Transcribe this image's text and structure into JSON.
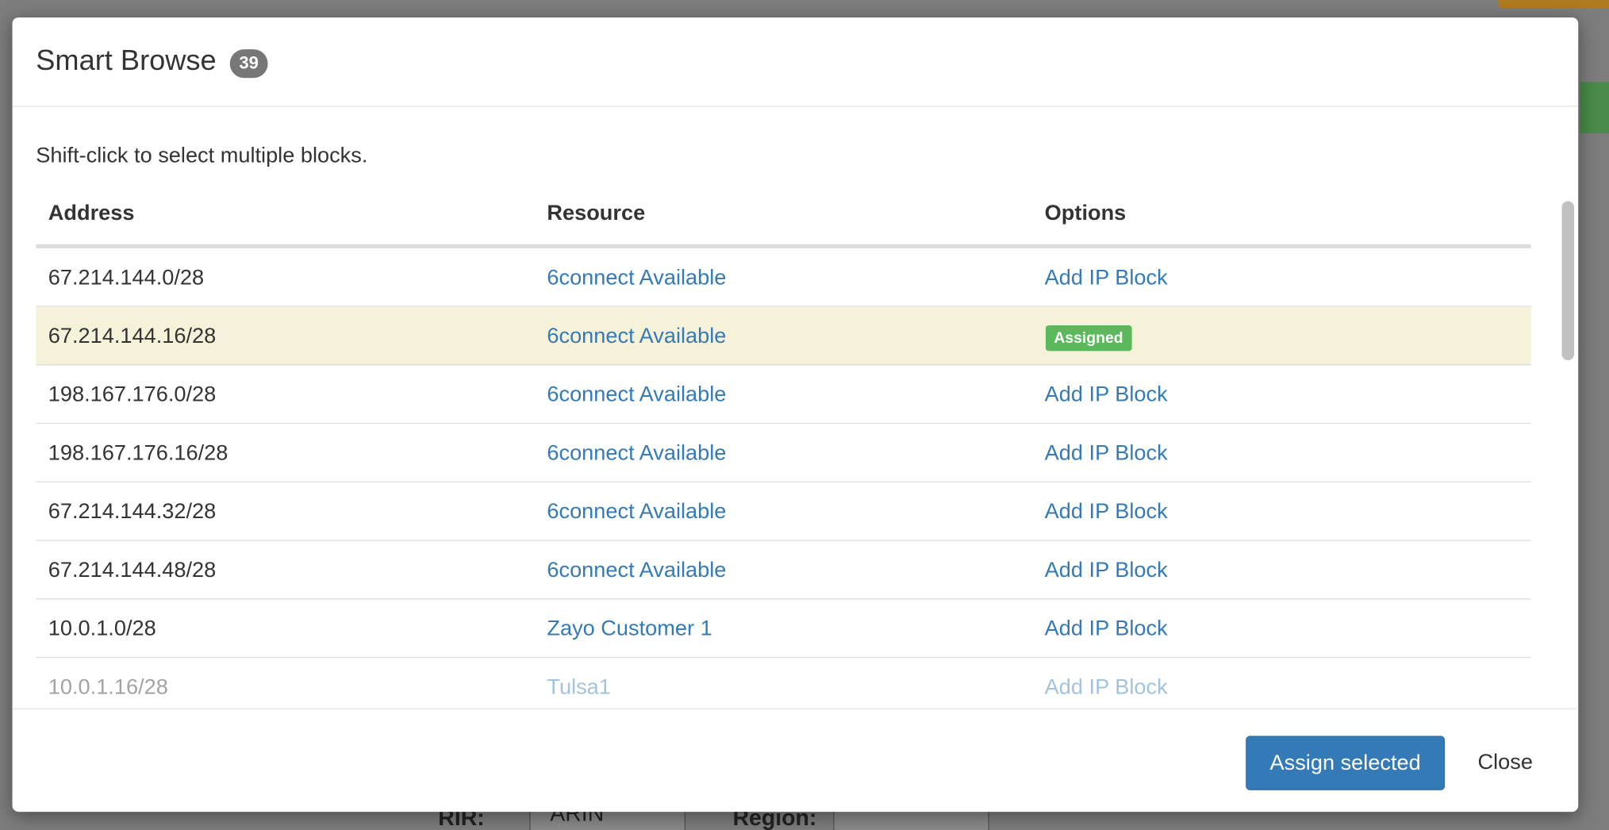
{
  "backdrop": {
    "rir_label": "RIR:",
    "rir_value": "ARIN",
    "region_label": "Region:"
  },
  "modal": {
    "title": "Smart Browse",
    "count": "39",
    "hint": "Shift-click to select multiple blocks.",
    "table": {
      "columns": [
        "Address",
        "Resource",
        "Options"
      ],
      "rows": [
        {
          "address": "67.214.144.0/28",
          "resource": "6connect Available",
          "option": "Add IP Block"
        },
        {
          "address": "67.214.144.16/28",
          "resource": "6connect Available",
          "option": "Assigned",
          "selected": true
        },
        {
          "address": "198.167.176.0/28",
          "resource": "6connect Available",
          "option": "Add IP Block"
        },
        {
          "address": "198.167.176.16/28",
          "resource": "6connect Available",
          "option": "Add IP Block"
        },
        {
          "address": "67.214.144.32/28",
          "resource": "6connect Available",
          "option": "Add IP Block"
        },
        {
          "address": "67.214.144.48/28",
          "resource": "6connect Available",
          "option": "Add IP Block"
        },
        {
          "address": "10.0.1.0/28",
          "resource": "Zayo Customer 1",
          "option": "Add IP Block"
        },
        {
          "address": "10.0.1.16/28",
          "resource": "Tulsa1",
          "option": "Add IP Block"
        }
      ]
    },
    "footer": {
      "assign": "Assign selected",
      "close": "Close"
    }
  }
}
